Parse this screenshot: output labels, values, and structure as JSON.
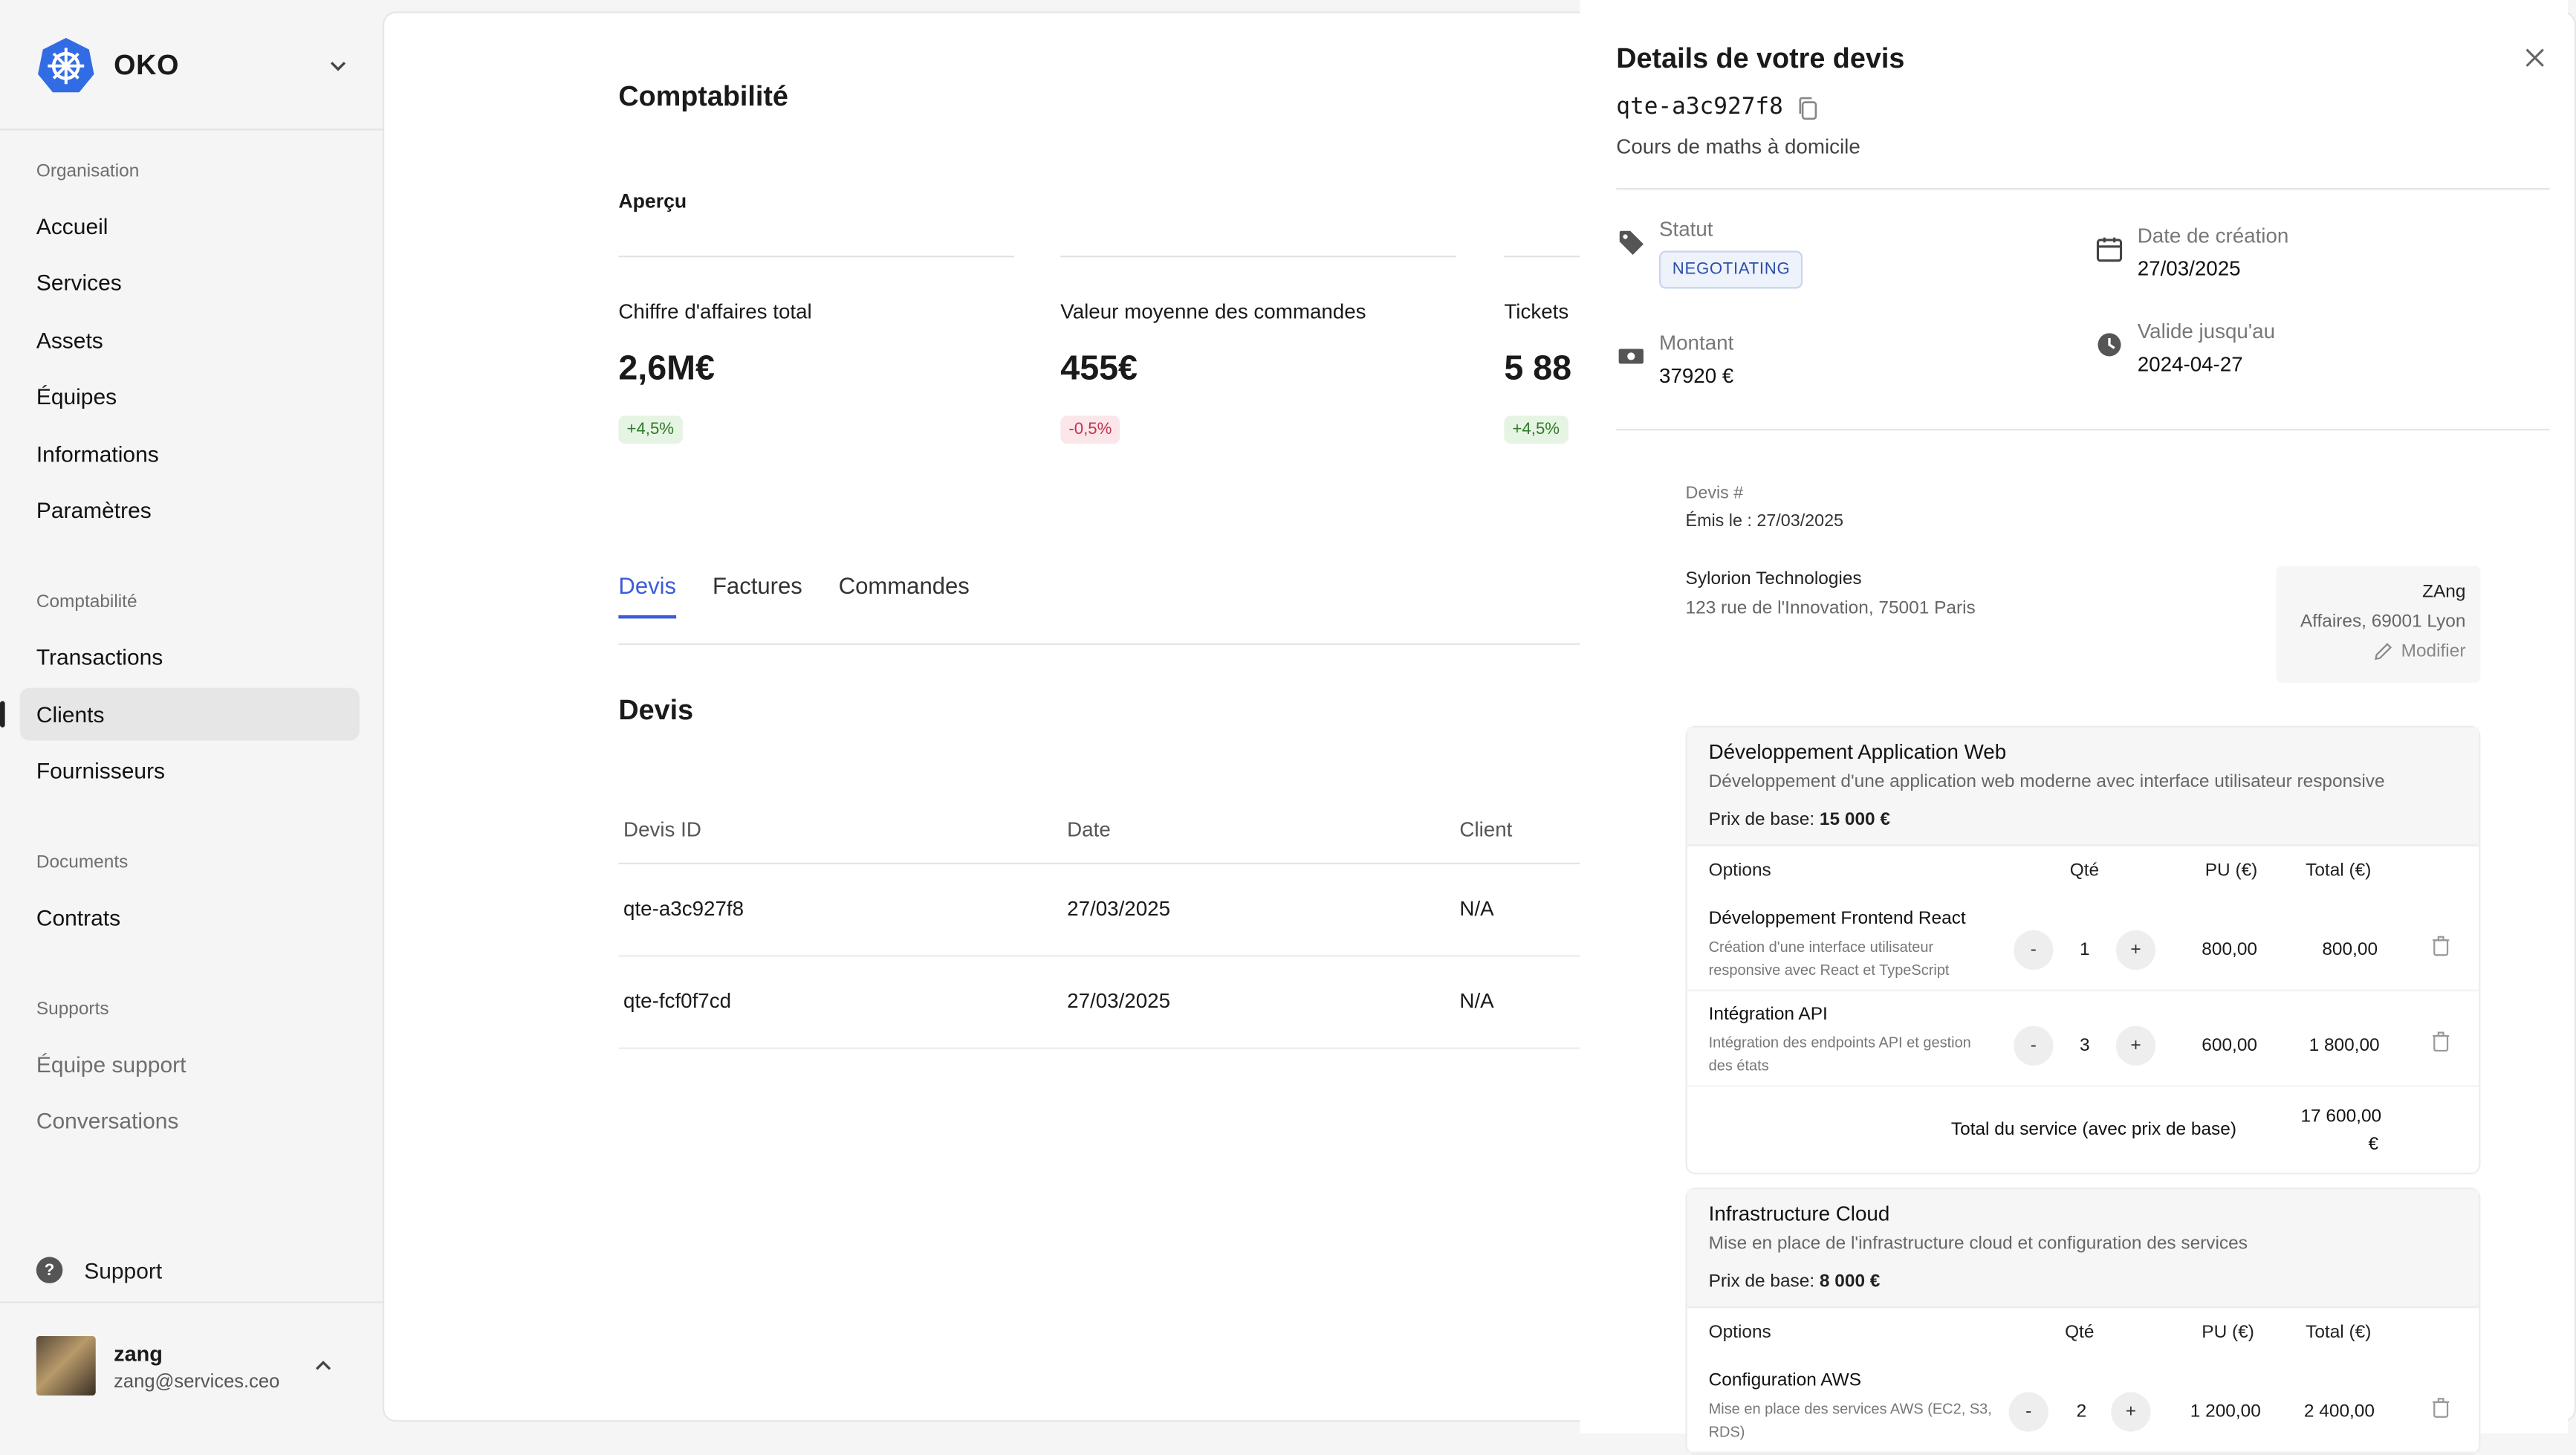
{
  "brand": {
    "name": "OKO"
  },
  "sidebar": {
    "sections": [
      {
        "title": "Organisation",
        "items": [
          "Accueil",
          "Services",
          "Assets",
          "Équipes",
          "Informations",
          "Paramètres"
        ]
      },
      {
        "title": "Comptabilité",
        "items": [
          "Transactions",
          "Clients",
          "Fournisseurs"
        ]
      },
      {
        "title": "Documents",
        "items": [
          "Contrats"
        ]
      },
      {
        "title": "Supports",
        "items": [
          "Équipe support",
          "Conversations"
        ]
      }
    ],
    "active_item": "Clients",
    "support_label": "Support",
    "user": {
      "name": "zang",
      "email": "zang@services.ceo"
    }
  },
  "main": {
    "title": "Comptabilité",
    "overview_label": "Aperçu",
    "stats": [
      {
        "label": "Chiffre d'affaires total",
        "value": "2,6M€",
        "change": "+4,5%",
        "trend": "up"
      },
      {
        "label": "Valeur moyenne des commandes",
        "value": "455€",
        "change": "-0,5%",
        "trend": "down"
      },
      {
        "label": "Tickets",
        "value": "5 88",
        "change": "+4,5%",
        "trend": "up"
      }
    ],
    "tabs": [
      "Devis",
      "Factures",
      "Commandes"
    ],
    "active_tab": "Devis",
    "section_title": "Devis",
    "table": {
      "headers": [
        "Devis ID",
        "Date",
        "Client"
      ],
      "rows": [
        [
          "qte-a3c927f8",
          "27/03/2025",
          "N/A"
        ],
        [
          "qte-fcf0f7cd",
          "27/03/2025",
          "N/A"
        ]
      ]
    }
  },
  "drawer": {
    "title": "Details de votre devis",
    "quote_id": "qte-a3c927f8",
    "subtitle": "Cours de maths à domicile",
    "status_label": "Statut",
    "status_value": "NEGOTIATING",
    "created_label": "Date de création",
    "created_value": "27/03/2025",
    "amount_label": "Montant",
    "amount_value": "37920 €",
    "valid_label": "Valide jusqu'au",
    "valid_value": "2024-04-27",
    "devis_number_label": "Devis #",
    "issued": "Émis le : 27/03/2025",
    "company": {
      "name": "Sylorion Technologies",
      "address": "123 rue de l'Innovation, 75001 Paris"
    },
    "client": {
      "name": "ZAng",
      "address": "Affaires, 69001 Lyon",
      "edit_label": "Modifier"
    },
    "options_headers": {
      "options": "Options",
      "qty": "Qté",
      "pu": "PU (€)",
      "total": "Total (€)"
    },
    "services": [
      {
        "name": "Développement Application Web",
        "description": "Développement d'une application web moderne avec interface utilisateur responsive",
        "base_label": "Prix de base:",
        "base_price": "15 000 €",
        "options": [
          {
            "name": "Développement Frontend React",
            "description": "Création d'une interface utilisateur responsive avec React et TypeScript",
            "qty": "1",
            "pu": "800,00",
            "total": "800,00"
          },
          {
            "name": "Intégration API",
            "description": "Intégration des endpoints API et gestion des états",
            "qty": "3",
            "pu": "600,00",
            "total": "1 800,00"
          }
        ],
        "total_label": "Total du service (avec prix de base)",
        "total_value_line1": "17 600,00",
        "total_value_line2": "€"
      },
      {
        "name": "Infrastructure Cloud",
        "description": "Mise en place de l'infrastructure cloud et configuration des services",
        "base_label": "Prix de base:",
        "base_price": "8 000 €",
        "options": [
          {
            "name": "Configuration AWS",
            "description": "Mise en place des services AWS (EC2, S3, RDS)",
            "qty": "2",
            "pu": "1 200,00",
            "total": "2 400,00"
          }
        ]
      }
    ],
    "stepper_minus": "-",
    "stepper_plus": "+"
  },
  "colors": {
    "accent": "#3b5bdb",
    "logo": "#326ce5",
    "up": "#2f7a2a",
    "down": "#c0344f"
  }
}
